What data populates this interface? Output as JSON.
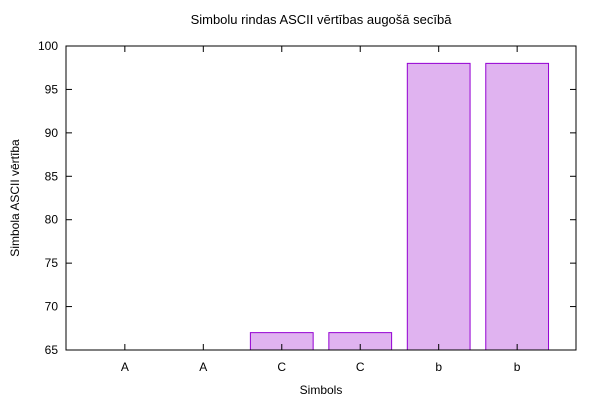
{
  "chart_data": {
    "type": "bar",
    "title": "Simbolu rindas ASCII vērtības augošā secībā",
    "xlabel": "Simbols",
    "ylabel": "Simbola ASCII vērtība",
    "categories": [
      "A",
      "A",
      "C",
      "C",
      "b",
      "b"
    ],
    "values": [
      65,
      65,
      67,
      67,
      98,
      98
    ],
    "ylim": [
      65,
      100
    ],
    "yticks": [
      65,
      70,
      75,
      80,
      85,
      90,
      95,
      100
    ],
    "grid": false,
    "bar_fill": "#e0b3f0",
    "bar_stroke": "#9400d3"
  }
}
